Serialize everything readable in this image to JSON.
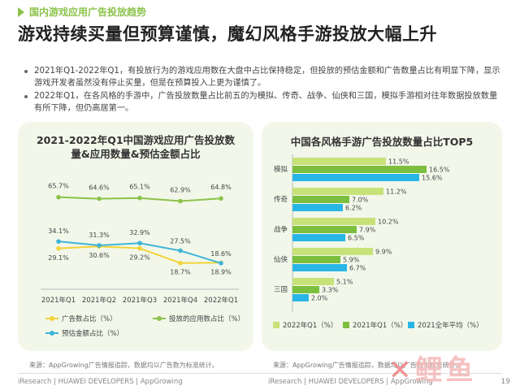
{
  "section_tag": "国内游戏应用广告投放趋势",
  "headline": "游戏持续买量但预算谨慎，魔幻风格手游投放大幅上升",
  "bullets": [
    "2021年Q1-2022年Q1，有投放行为的游戏应用数在大盘中占比保持稳定，但投放的预估金额和广告数量占比有明显下降，显示游戏开发者虽然没有停止买量，但是在预算投入上更为谨慎了。",
    "2022年Q1，在各风格的手游中，广告投放数量占比前五的为模拟、传奇、战争、仙侠和三国，模拟手游相对往年数据投放数量有所下降，但仍高居第一。"
  ],
  "left_panel": {
    "title_line1": "2021-2022年Q1中国游戏应用广告投放数",
    "title_line2": "量&应用数量&预估金额占比",
    "source": "来源：AppGrowing广告情报追踪，数据均以广告数为标准统计。"
  },
  "right_panel": {
    "title": "中国各风格手游广告投放数量占比TOP5",
    "source": "来源：AppGrowing广告情报追踪，数据均以广告数为标准统计。"
  },
  "footer_left": "iResearch | HUAWEI DEVELOPERS | AppGrowing",
  "footer_right": "iResearch | HUAWEI DEVELOPERS | AppGrowing",
  "page_number": "19",
  "logo_text": "鲤鱼",
  "chart_data": [
    {
      "type": "line",
      "categories": [
        "2021年Q1",
        "2021年Q2",
        "2021年Q3",
        "2021年Q4",
        "2022年Q1"
      ],
      "series": [
        {
          "name": "投放的应用数占比（%）",
          "values": [
            65.7,
            64.6,
            65.1,
            62.9,
            64.8
          ],
          "labels": [
            "65.7%",
            "64.6%",
            "65.1%",
            "62.9%",
            "64.8%"
          ],
          "color": "#8bc34a"
        },
        {
          "name": "广告数占比（%）",
          "values": [
            29.1,
            30.6,
            29.2,
            18.7,
            18.9
          ],
          "labels": [
            "29.1%",
            "30.6%",
            "29.2%",
            "18.7%",
            "18.9%"
          ],
          "color": "#f2d33a"
        },
        {
          "name": "预估金额占比（%）",
          "values": [
            34.1,
            31.3,
            32.9,
            27.5,
            18.6
          ],
          "labels": [
            "34.1%",
            "31.3%",
            "32.9%",
            "27.5%",
            "18.6%"
          ],
          "color": "#3fb4d8"
        }
      ],
      "ylim": [
        0,
        80
      ],
      "grid": false,
      "legend": "bottom"
    },
    {
      "type": "bar",
      "orientation": "horizontal",
      "categories": [
        "模拟",
        "传奇",
        "战争",
        "仙侠",
        "三国"
      ],
      "series": [
        {
          "name": "2022年Q1（%）",
          "values": [
            11.5,
            11.2,
            10.2,
            9.9,
            5.1
          ],
          "labels": [
            "11.5%",
            "11.2%",
            "10.2%",
            "9.9%",
            "5.1%"
          ],
          "color": "#c8e27a"
        },
        {
          "name": "2021年Q1（%）",
          "values": [
            16.5,
            7.0,
            7.9,
            5.9,
            3.3
          ],
          "labels": [
            "16.5%",
            "7.0%",
            "7.9%",
            "5.9%",
            "3.3%"
          ],
          "color": "#7cbf3e"
        },
        {
          "name": "2021全年平均（%）",
          "values": [
            15.6,
            6.2,
            6.5,
            6.7,
            2.0
          ],
          "labels": [
            "15.6%",
            "6.2%",
            "6.5%",
            "6.7%",
            "2.0%"
          ],
          "color": "#29b6e6"
        }
      ],
      "xlim": [
        0,
        20
      ],
      "grid": false,
      "legend": "bottom"
    }
  ]
}
